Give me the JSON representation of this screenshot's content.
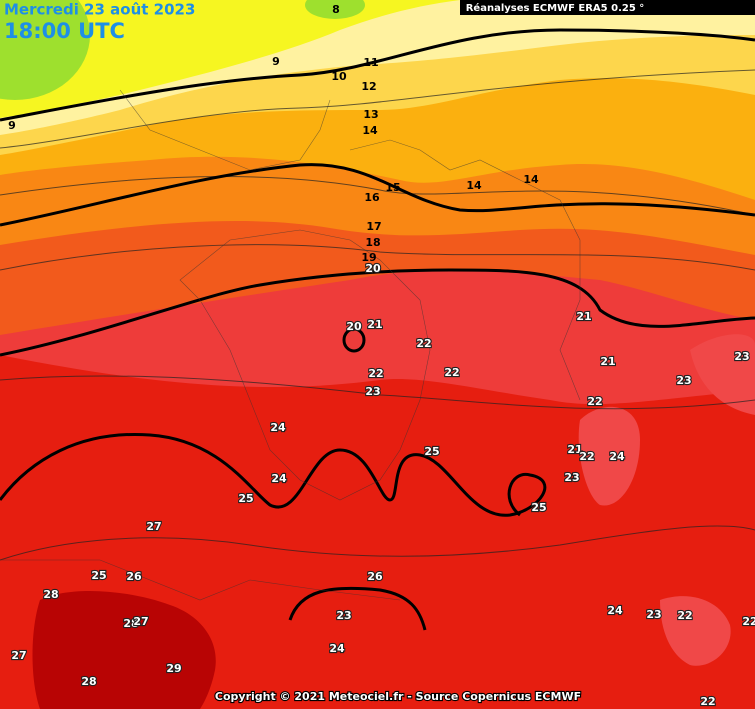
{
  "header": {
    "date": "Mercredi 23 août 2023",
    "time": "18:00 UTC",
    "source": "Réanalyses ECMWF ERA5 0.25 °"
  },
  "footer": {
    "copyright": "Copyright © 2021 Meteociel.fr - Source Copernicus ECMWF"
  },
  "contour_labels": [
    8,
    9,
    9,
    10,
    11,
    12,
    13,
    14,
    15,
    14,
    14,
    16,
    17,
    18,
    19,
    20,
    20,
    21,
    22,
    21,
    21,
    23,
    23,
    22,
    22,
    23,
    22,
    24,
    25,
    21,
    22,
    24,
    23,
    24,
    25,
    25,
    27,
    25,
    26,
    26,
    28,
    28,
    27,
    23,
    24,
    23,
    22,
    22,
    29,
    27,
    24,
    28,
    22
  ]
}
